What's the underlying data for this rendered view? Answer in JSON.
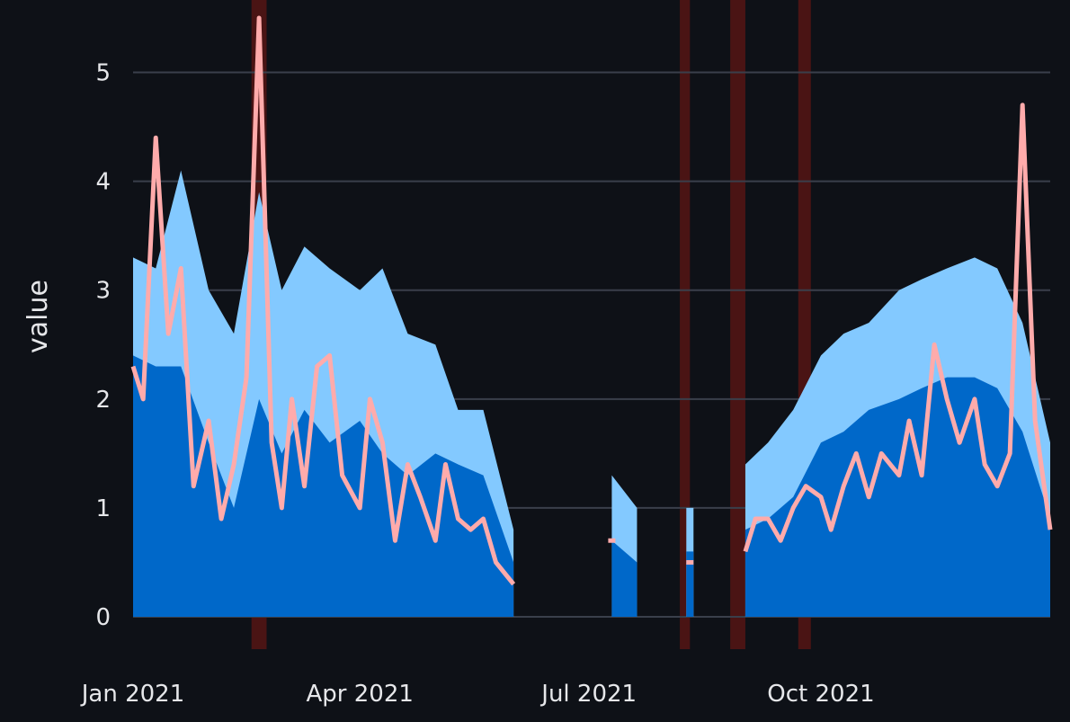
{
  "chart_data": {
    "type": "area",
    "title": "",
    "xlabel": "",
    "ylabel": "value",
    "x_range": [
      "2021-01-01",
      "2021-12-31"
    ],
    "ylim": [
      0,
      5.5
    ],
    "grid": "horizontal",
    "x_tick_labels": [
      {
        "date": "2021-01-01",
        "label": "Jan 2021"
      },
      {
        "date": "2021-04-01",
        "label": "Apr 2021"
      },
      {
        "date": "2021-07-01",
        "label": "Jul 2021"
      },
      {
        "date": "2021-10-01",
        "label": "Oct 2021"
      }
    ],
    "y_ticks": [
      0,
      1,
      2,
      3,
      4,
      5
    ],
    "colors": {
      "background": "#0e1117",
      "grid": "#3a3f4b",
      "upper_band": "#83c9ff",
      "lower_band": "#0068c9",
      "line": "#ffabab",
      "highlight": "#4a1414"
    },
    "highlight_spans": [
      [
        "2021-02-17",
        "2021-02-23"
      ],
      [
        "2021-08-06",
        "2021-08-10"
      ],
      [
        "2021-08-26",
        "2021-09-01"
      ],
      [
        "2021-09-22",
        "2021-09-27"
      ]
    ],
    "series": [
      {
        "role": "upper",
        "x": [
          "2021-01-01",
          "2021-01-10",
          "2021-01-20",
          "2021-01-31",
          "2021-02-10",
          "2021-02-20",
          "2021-03-01",
          "2021-03-10",
          "2021-03-20",
          "2021-04-01",
          "2021-04-10",
          "2021-04-20",
          "2021-05-01",
          "2021-05-10",
          "2021-05-20",
          "2021-06-01",
          "2021-06-10",
          "2021-06-20",
          "2021-07-01",
          "2021-07-10",
          "2021-07-20",
          "2021-08-01",
          "2021-08-10",
          "2021-08-20",
          "2021-09-01",
          "2021-09-10",
          "2021-09-20",
          "2021-10-01",
          "2021-10-10",
          "2021-10-20",
          "2021-11-01",
          "2021-11-10",
          "2021-11-20",
          "2021-12-01",
          "2021-12-10",
          "2021-12-20",
          "2021-12-31"
        ],
        "values": [
          3.3,
          3.2,
          4.1,
          3.0,
          2.6,
          3.9,
          3.0,
          3.4,
          3.2,
          3.0,
          3.2,
          2.6,
          2.5,
          1.9,
          1.9,
          0.8,
          null,
          null,
          null,
          1.3,
          1.0,
          null,
          1.0,
          null,
          1.4,
          1.6,
          1.9,
          2.4,
          2.6,
          2.7,
          3.0,
          3.1,
          3.2,
          3.3,
          3.2,
          2.7,
          1.6
        ]
      },
      {
        "role": "lower",
        "x": [
          "2021-01-01",
          "2021-01-10",
          "2021-01-20",
          "2021-01-31",
          "2021-02-10",
          "2021-02-20",
          "2021-03-01",
          "2021-03-10",
          "2021-03-20",
          "2021-04-01",
          "2021-04-10",
          "2021-04-20",
          "2021-05-01",
          "2021-05-10",
          "2021-05-20",
          "2021-06-01",
          "2021-06-10",
          "2021-06-20",
          "2021-07-01",
          "2021-07-10",
          "2021-07-20",
          "2021-08-01",
          "2021-08-10",
          "2021-08-20",
          "2021-09-01",
          "2021-09-10",
          "2021-09-20",
          "2021-10-01",
          "2021-10-10",
          "2021-10-20",
          "2021-11-01",
          "2021-11-10",
          "2021-11-20",
          "2021-12-01",
          "2021-12-10",
          "2021-12-20",
          "2021-12-31"
        ],
        "values": [
          2.4,
          2.3,
          2.3,
          1.6,
          1.0,
          2.0,
          1.5,
          1.9,
          1.6,
          1.8,
          1.5,
          1.3,
          1.5,
          1.4,
          1.3,
          0.5,
          null,
          null,
          null,
          0.7,
          0.5,
          null,
          0.6,
          null,
          0.8,
          0.9,
          1.1,
          1.6,
          1.7,
          1.9,
          2.0,
          2.1,
          2.2,
          2.2,
          2.1,
          1.7,
          0.9
        ]
      },
      {
        "role": "line",
        "x": [
          "2021-01-01",
          "2021-01-05",
          "2021-01-10",
          "2021-01-15",
          "2021-01-20",
          "2021-01-25",
          "2021-01-31",
          "2021-02-05",
          "2021-02-10",
          "2021-02-15",
          "2021-02-20",
          "2021-02-25",
          "2021-03-01",
          "2021-03-05",
          "2021-03-10",
          "2021-03-15",
          "2021-03-20",
          "2021-03-25",
          "2021-04-01",
          "2021-04-05",
          "2021-04-10",
          "2021-04-15",
          "2021-04-20",
          "2021-04-25",
          "2021-05-01",
          "2021-05-05",
          "2021-05-10",
          "2021-05-15",
          "2021-05-20",
          "2021-05-25",
          "2021-06-01",
          "2021-06-05",
          "2021-06-10",
          "2021-06-20",
          "2021-07-01",
          "2021-07-10",
          "2021-07-20",
          "2021-08-01",
          "2021-08-10",
          "2021-08-20",
          "2021-09-01",
          "2021-09-05",
          "2021-09-10",
          "2021-09-15",
          "2021-09-20",
          "2021-09-25",
          "2021-10-01",
          "2021-10-05",
          "2021-10-10",
          "2021-10-15",
          "2021-10-20",
          "2021-10-25",
          "2021-11-01",
          "2021-11-05",
          "2021-11-10",
          "2021-11-15",
          "2021-11-20",
          "2021-11-25",
          "2021-12-01",
          "2021-12-05",
          "2021-12-10",
          "2021-12-15",
          "2021-12-20",
          "2021-12-25",
          "2021-12-31"
        ],
        "values": [
          2.3,
          2.0,
          4.4,
          2.6,
          3.2,
          1.2,
          1.8,
          0.9,
          1.4,
          2.2,
          5.5,
          1.6,
          1.0,
          2.0,
          1.2,
          2.3,
          2.4,
          1.3,
          1.0,
          2.0,
          1.6,
          0.7,
          1.4,
          1.1,
          0.7,
          1.4,
          0.9,
          0.8,
          0.9,
          0.5,
          0.3,
          null,
          null,
          null,
          null,
          0.7,
          null,
          null,
          0.5,
          null,
          0.6,
          0.9,
          0.9,
          0.7,
          1.0,
          1.2,
          1.1,
          0.8,
          1.2,
          1.5,
          1.1,
          1.5,
          1.3,
          1.8,
          1.3,
          2.5,
          2.0,
          1.6,
          2.0,
          1.4,
          1.2,
          1.5,
          4.7,
          1.8,
          0.8
        ]
      }
    ]
  }
}
